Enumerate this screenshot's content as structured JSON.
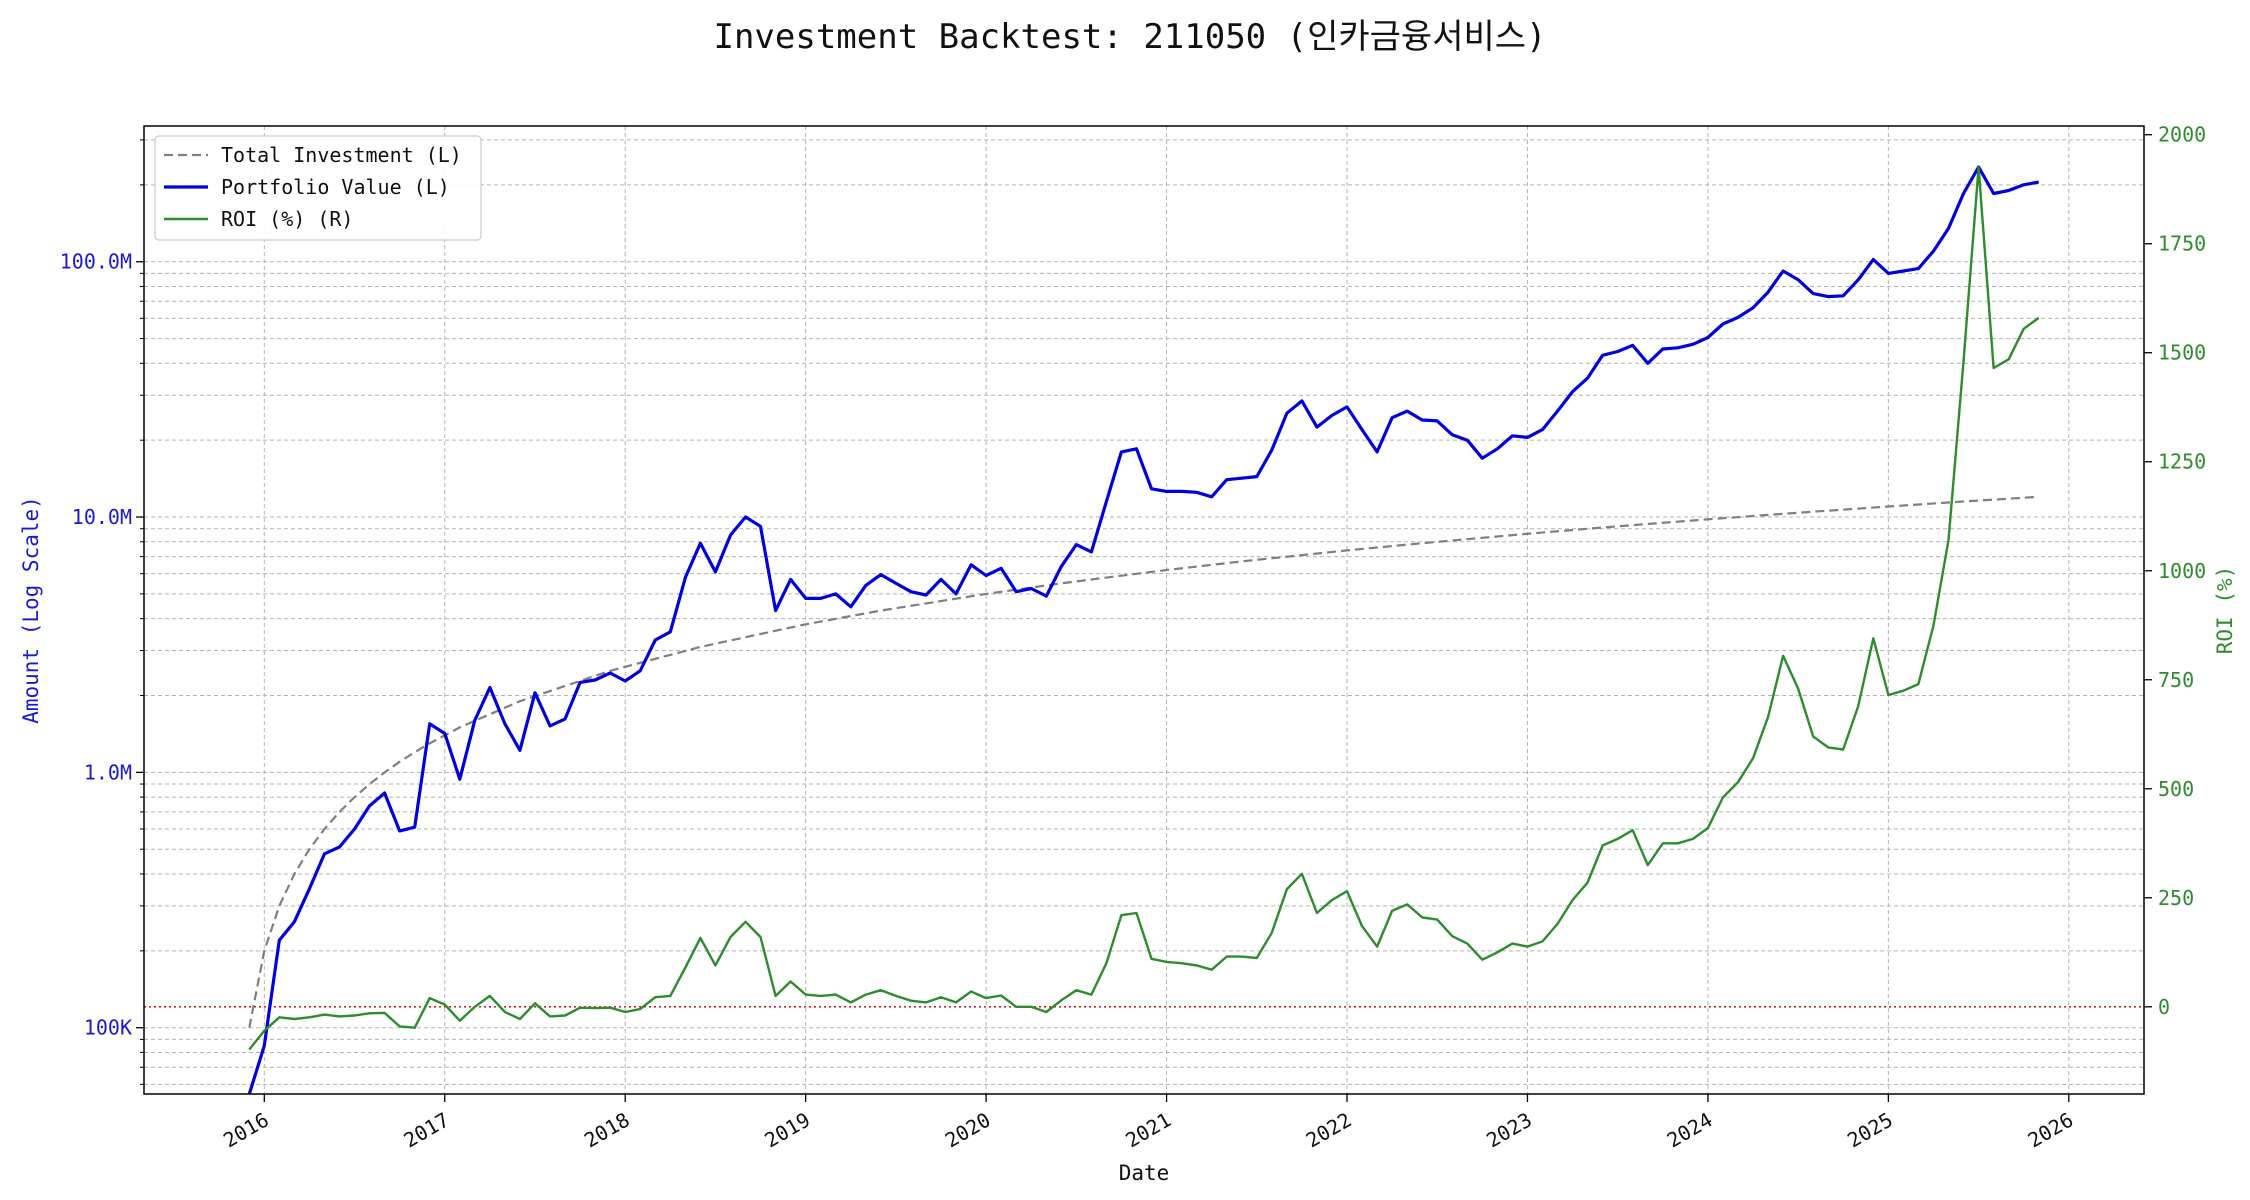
{
  "chart_data": {
    "type": "line",
    "title": "Investment Backtest: 211050 (인카금융서비스)",
    "xlabel": "Date",
    "ylabel_left": "Amount (Log Scale)",
    "ylabel_right": "ROI (%)",
    "y_left_scale": "log",
    "y_left_lim": [
      55000,
      340000000
    ],
    "y_right_lim": [
      -200,
      2020
    ],
    "x_lim": [
      "2015-05",
      "2026-06"
    ],
    "grid": true,
    "legend_position": "top-left",
    "x_ticks": [
      "2016",
      "2017",
      "2018",
      "2019",
      "2020",
      "2021",
      "2022",
      "2023",
      "2024",
      "2025",
      "2026"
    ],
    "y_left_ticks": [
      {
        "value": 100000,
        "label": "100K"
      },
      {
        "value": 1000000,
        "label": "1.0M"
      },
      {
        "value": 10000000,
        "label": "10.0M"
      },
      {
        "value": 100000000,
        "label": "100.0M"
      }
    ],
    "y_right_ticks": [
      0,
      250,
      500,
      750,
      1000,
      1250,
      1500,
      1750,
      2000
    ],
    "zero_line": {
      "axis": "right",
      "value": 0,
      "color": "#cc0000",
      "style": "dotted"
    },
    "series": [
      {
        "name": "Total Investment (L)",
        "axis": "left",
        "color": "#7f7f7f",
        "style": "dashed",
        "points": [
          [
            "2015-12",
            100000
          ],
          [
            "2016-01",
            200000
          ],
          [
            "2016-02",
            300000
          ],
          [
            "2016-03",
            400000
          ],
          [
            "2016-04",
            500000
          ],
          [
            "2016-05",
            600000
          ],
          [
            "2016-06",
            700000
          ],
          [
            "2016-07",
            800000
          ],
          [
            "2016-08",
            900000
          ],
          [
            "2016-09",
            1000000
          ],
          [
            "2016-10",
            1100000
          ],
          [
            "2016-11",
            1200000
          ],
          [
            "2016-12",
            1300000
          ],
          [
            "2017-02",
            1500000
          ],
          [
            "2017-06",
            1900000
          ],
          [
            "2017-12",
            2500000
          ],
          [
            "2018-06",
            3100000
          ],
          [
            "2019-01",
            3800000
          ],
          [
            "2019-06",
            4300000
          ],
          [
            "2020-01",
            5000000
          ],
          [
            "2020-06",
            5500000
          ],
          [
            "2021-01",
            6200000
          ],
          [
            "2021-06",
            6700000
          ],
          [
            "2022-01",
            7400000
          ],
          [
            "2022-06",
            7900000
          ],
          [
            "2023-01",
            8600000
          ],
          [
            "2023-06",
            9100000
          ],
          [
            "2024-01",
            9800000
          ],
          [
            "2024-06",
            10300000
          ],
          [
            "2025-01",
            11000000
          ],
          [
            "2025-06",
            11500000
          ],
          [
            "2025-11",
            12000000
          ]
        ]
      },
      {
        "name": "Portfolio Value (L)",
        "axis": "left",
        "color": "#0000dd",
        "style": "solid",
        "points": [
          [
            "2015-12",
            52000
          ],
          [
            "2016-01",
            85000
          ],
          [
            "2016-02",
            220000
          ],
          [
            "2016-03",
            260000
          ],
          [
            "2016-04",
            350000
          ],
          [
            "2016-05",
            480000
          ],
          [
            "2016-06",
            510000
          ],
          [
            "2016-07",
            600000
          ],
          [
            "2016-08",
            740000
          ],
          [
            "2016-09",
            830000
          ],
          [
            "2016-10",
            590000
          ],
          [
            "2016-11",
            610000
          ],
          [
            "2016-12",
            1550000
          ],
          [
            "2017-01",
            1420000
          ],
          [
            "2017-02",
            940000
          ],
          [
            "2017-03",
            1600000
          ],
          [
            "2017-04",
            2150000
          ],
          [
            "2017-05",
            1550000
          ],
          [
            "2017-06",
            1220000
          ],
          [
            "2017-07",
            2050000
          ],
          [
            "2017-08",
            1520000
          ],
          [
            "2017-09",
            1620000
          ],
          [
            "2017-10",
            2250000
          ],
          [
            "2017-11",
            2300000
          ],
          [
            "2017-12",
            2450000
          ],
          [
            "2018-01",
            2280000
          ],
          [
            "2018-02",
            2500000
          ],
          [
            "2018-03",
            3300000
          ],
          [
            "2018-04",
            3550000
          ],
          [
            "2018-05",
            5800000
          ],
          [
            "2018-06",
            7900000
          ],
          [
            "2018-07",
            6100000
          ],
          [
            "2018-08",
            8500000
          ],
          [
            "2018-09",
            10000000
          ],
          [
            "2018-10",
            9200000
          ],
          [
            "2018-11",
            4300000
          ],
          [
            "2018-12",
            5700000
          ],
          [
            "2019-01",
            4800000
          ],
          [
            "2019-02",
            4800000
          ],
          [
            "2019-03",
            5000000
          ],
          [
            "2019-04",
            4450000
          ],
          [
            "2019-05",
            5400000
          ],
          [
            "2019-06",
            5950000
          ],
          [
            "2019-07",
            5500000
          ],
          [
            "2019-08",
            5100000
          ],
          [
            "2019-09",
            4950000
          ],
          [
            "2019-10",
            5700000
          ],
          [
            "2019-11",
            5000000
          ],
          [
            "2019-12",
            6500000
          ],
          [
            "2020-01",
            5900000
          ],
          [
            "2020-02",
            6300000
          ],
          [
            "2020-03",
            5100000
          ],
          [
            "2020-04",
            5250000
          ],
          [
            "2020-05",
            4900000
          ],
          [
            "2020-06",
            6400000
          ],
          [
            "2020-07",
            7800000
          ],
          [
            "2020-08",
            7300000
          ],
          [
            "2020-09",
            11500000
          ],
          [
            "2020-10",
            18000000
          ],
          [
            "2020-11",
            18500000
          ],
          [
            "2020-12",
            12900000
          ],
          [
            "2021-01",
            12600000
          ],
          [
            "2021-02",
            12600000
          ],
          [
            "2021-03",
            12500000
          ],
          [
            "2021-04",
            12000000
          ],
          [
            "2021-05",
            14000000
          ],
          [
            "2021-06",
            14200000
          ],
          [
            "2021-07",
            14400000
          ],
          [
            "2021-08",
            18300000
          ],
          [
            "2021-09",
            25500000
          ],
          [
            "2021-10",
            28500000
          ],
          [
            "2021-11",
            22500000
          ],
          [
            "2021-12",
            25000000
          ],
          [
            "2022-01",
            27000000
          ],
          [
            "2022-02",
            22000000
          ],
          [
            "2022-03",
            18000000
          ],
          [
            "2022-04",
            24500000
          ],
          [
            "2022-05",
            26000000
          ],
          [
            "2022-06",
            24000000
          ],
          [
            "2022-07",
            23800000
          ],
          [
            "2022-08",
            21000000
          ],
          [
            "2022-09",
            20000000
          ],
          [
            "2022-10",
            17000000
          ],
          [
            "2022-11",
            18500000
          ],
          [
            "2022-12",
            20800000
          ],
          [
            "2023-01",
            20500000
          ],
          [
            "2023-02",
            22000000
          ],
          [
            "2023-03",
            26000000
          ],
          [
            "2023-04",
            31000000
          ],
          [
            "2023-05",
            35000000
          ],
          [
            "2023-06",
            43000000
          ],
          [
            "2023-07",
            44500000
          ],
          [
            "2023-08",
            47000000
          ],
          [
            "2023-09",
            40000000
          ],
          [
            "2023-10",
            45500000
          ],
          [
            "2023-11",
            46000000
          ],
          [
            "2023-12",
            47500000
          ],
          [
            "2024-01",
            50500000
          ],
          [
            "2024-02",
            57000000
          ],
          [
            "2024-03",
            60500000
          ],
          [
            "2024-04",
            66000000
          ],
          [
            "2024-05",
            76000000
          ],
          [
            "2024-06",
            92000000
          ],
          [
            "2024-07",
            85000000
          ],
          [
            "2024-08",
            75000000
          ],
          [
            "2024-09",
            73000000
          ],
          [
            "2024-10",
            73500000
          ],
          [
            "2024-11",
            85000000
          ],
          [
            "2024-12",
            102000000
          ],
          [
            "2025-01",
            90000000
          ],
          [
            "2025-02",
            92000000
          ],
          [
            "2025-03",
            94000000
          ],
          [
            "2025-04",
            110000000
          ],
          [
            "2025-05",
            135000000
          ],
          [
            "2025-06",
            185000000
          ],
          [
            "2025-07",
            235000000
          ],
          [
            "2025-08",
            185000000
          ],
          [
            "2025-09",
            190000000
          ],
          [
            "2025-10",
            200000000
          ],
          [
            "2025-11",
            205000000
          ]
        ]
      },
      {
        "name": "ROI (%) (R)",
        "axis": "right",
        "color": "#2e8b2e",
        "style": "solid",
        "points": [
          [
            "2015-12",
            -98
          ],
          [
            "2016-01",
            -55
          ],
          [
            "2016-02",
            -24
          ],
          [
            "2016-03",
            -28
          ],
          [
            "2016-04",
            -24
          ],
          [
            "2016-05",
            -18
          ],
          [
            "2016-06",
            -22
          ],
          [
            "2016-07",
            -20
          ],
          [
            "2016-08",
            -15
          ],
          [
            "2016-09",
            -14
          ],
          [
            "2016-10",
            -45
          ],
          [
            "2016-11",
            -48
          ],
          [
            "2016-12",
            20
          ],
          [
            "2017-01",
            5
          ],
          [
            "2017-02",
            -32
          ],
          [
            "2017-03",
            0
          ],
          [
            "2017-04",
            25
          ],
          [
            "2017-05",
            -12
          ],
          [
            "2017-06",
            -28
          ],
          [
            "2017-07",
            8
          ],
          [
            "2017-08",
            -22
          ],
          [
            "2017-09",
            -20
          ],
          [
            "2017-10",
            -2
          ],
          [
            "2017-11",
            -3
          ],
          [
            "2017-12",
            -2
          ],
          [
            "2018-01",
            -12
          ],
          [
            "2018-02",
            -5
          ],
          [
            "2018-03",
            22
          ],
          [
            "2018-04",
            25
          ],
          [
            "2018-05",
            90
          ],
          [
            "2018-06",
            158
          ],
          [
            "2018-07",
            95
          ],
          [
            "2018-08",
            160
          ],
          [
            "2018-09",
            195
          ],
          [
            "2018-10",
            160
          ],
          [
            "2018-11",
            25
          ],
          [
            "2018-12",
            58
          ],
          [
            "2019-01",
            28
          ],
          [
            "2019-02",
            25
          ],
          [
            "2019-03",
            28
          ],
          [
            "2019-04",
            10
          ],
          [
            "2019-05",
            28
          ],
          [
            "2019-06",
            38
          ],
          [
            "2019-07",
            25
          ],
          [
            "2019-08",
            14
          ],
          [
            "2019-09",
            10
          ],
          [
            "2019-10",
            22
          ],
          [
            "2019-11",
            10
          ],
          [
            "2019-12",
            35
          ],
          [
            "2020-01",
            20
          ],
          [
            "2020-02",
            26
          ],
          [
            "2020-03",
            0
          ],
          [
            "2020-04",
            0
          ],
          [
            "2020-05",
            -12
          ],
          [
            "2020-06",
            15
          ],
          [
            "2020-07",
            38
          ],
          [
            "2020-08",
            28
          ],
          [
            "2020-09",
            100
          ],
          [
            "2020-10",
            210
          ],
          [
            "2020-11",
            215
          ],
          [
            "2020-12",
            110
          ],
          [
            "2021-01",
            103
          ],
          [
            "2021-02",
            100
          ],
          [
            "2021-03",
            95
          ],
          [
            "2021-04",
            85
          ],
          [
            "2021-05",
            115
          ],
          [
            "2021-06",
            115
          ],
          [
            "2021-07",
            112
          ],
          [
            "2021-08",
            170
          ],
          [
            "2021-09",
            270
          ],
          [
            "2021-10",
            305
          ],
          [
            "2021-11",
            215
          ],
          [
            "2021-12",
            245
          ],
          [
            "2022-01",
            265
          ],
          [
            "2022-02",
            185
          ],
          [
            "2022-03",
            138
          ],
          [
            "2022-04",
            220
          ],
          [
            "2022-05",
            235
          ],
          [
            "2022-06",
            205
          ],
          [
            "2022-07",
            200
          ],
          [
            "2022-08",
            162
          ],
          [
            "2022-09",
            145
          ],
          [
            "2022-10",
            108
          ],
          [
            "2022-11",
            125
          ],
          [
            "2022-12",
            145
          ],
          [
            "2023-01",
            138
          ],
          [
            "2023-02",
            150
          ],
          [
            "2023-03",
            190
          ],
          [
            "2023-04",
            245
          ],
          [
            "2023-05",
            285
          ],
          [
            "2023-06",
            370
          ],
          [
            "2023-07",
            385
          ],
          [
            "2023-08",
            405
          ],
          [
            "2023-09",
            325
          ],
          [
            "2023-10",
            375
          ],
          [
            "2023-11",
            375
          ],
          [
            "2023-12",
            385
          ],
          [
            "2024-01",
            410
          ],
          [
            "2024-02",
            480
          ],
          [
            "2024-03",
            515
          ],
          [
            "2024-04",
            570
          ],
          [
            "2024-05",
            665
          ],
          [
            "2024-06",
            805
          ],
          [
            "2024-07",
            730
          ],
          [
            "2024-08",
            620
          ],
          [
            "2024-09",
            595
          ],
          [
            "2024-10",
            590
          ],
          [
            "2024-11",
            690
          ],
          [
            "2024-12",
            845
          ],
          [
            "2025-01",
            715
          ],
          [
            "2025-02",
            725
          ],
          [
            "2025-03",
            740
          ],
          [
            "2025-04",
            875
          ],
          [
            "2025-05",
            1070
          ],
          [
            "2025-06",
            1480
          ],
          [
            "2025-07",
            1925
          ],
          [
            "2025-08",
            1465
          ],
          [
            "2025-09",
            1485
          ],
          [
            "2025-10",
            1555
          ],
          [
            "2025-11",
            1580
          ]
        ]
      }
    ]
  }
}
